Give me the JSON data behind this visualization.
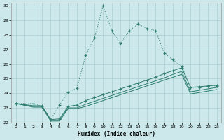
{
  "xlabel": "Humidex (Indice chaleur)",
  "background_color": "#cce8eb",
  "grid_color": "#aacdd2",
  "line_color": "#2e7d6e",
  "xlim": [
    -0.5,
    23.5
  ],
  "ylim": [
    22,
    30.2
  ],
  "xticks": [
    0,
    1,
    2,
    3,
    4,
    5,
    6,
    7,
    8,
    9,
    10,
    11,
    12,
    13,
    14,
    15,
    16,
    17,
    18,
    19,
    20,
    21,
    22,
    23
  ],
  "yticks": [
    22,
    23,
    24,
    25,
    26,
    27,
    28,
    29,
    30
  ],
  "s1_x": [
    0,
    2,
    3,
    4,
    5,
    6,
    7,
    8,
    9,
    10,
    11,
    12,
    13,
    14,
    15,
    16,
    17,
    18,
    19,
    20,
    21,
    22,
    23
  ],
  "s1_y": [
    23.3,
    23.3,
    23.1,
    22.2,
    23.2,
    24.05,
    24.35,
    26.6,
    27.8,
    30.0,
    28.3,
    27.4,
    28.3,
    28.75,
    28.45,
    28.3,
    26.75,
    26.3,
    25.85,
    24.4,
    24.4,
    24.5,
    24.5
  ],
  "s2_x": [
    0,
    2,
    3,
    4,
    5,
    6,
    7,
    8,
    9,
    10,
    11,
    12,
    13,
    14,
    15,
    16,
    17,
    18,
    19,
    20,
    21,
    22,
    23
  ],
  "s2_y": [
    23.3,
    23.15,
    23.15,
    22.2,
    22.25,
    23.1,
    23.2,
    23.5,
    23.7,
    23.9,
    24.1,
    24.3,
    24.5,
    24.7,
    24.9,
    25.1,
    25.35,
    25.55,
    25.75,
    24.4,
    24.45,
    24.5,
    24.55
  ],
  "s3_x": [
    0,
    2,
    3,
    4,
    5,
    6,
    7,
    8,
    9,
    10,
    11,
    12,
    13,
    14,
    15,
    16,
    17,
    18,
    19,
    20,
    21,
    22,
    23
  ],
  "s3_y": [
    23.3,
    23.1,
    23.1,
    22.15,
    22.15,
    23.0,
    23.0,
    23.25,
    23.45,
    23.65,
    23.85,
    24.05,
    24.25,
    24.45,
    24.65,
    24.85,
    25.05,
    25.3,
    25.5,
    24.1,
    24.2,
    24.3,
    24.4
  ],
  "s4_x": [
    0,
    2,
    3,
    4,
    5,
    6,
    7,
    8,
    9,
    10,
    11,
    12,
    13,
    14,
    15,
    16,
    17,
    18,
    19,
    20,
    21,
    22,
    23
  ],
  "s4_y": [
    23.3,
    23.05,
    23.05,
    22.1,
    22.1,
    22.95,
    22.95,
    23.1,
    23.3,
    23.5,
    23.7,
    23.9,
    24.1,
    24.3,
    24.5,
    24.7,
    24.9,
    25.1,
    25.3,
    23.95,
    24.05,
    24.15,
    24.25
  ]
}
